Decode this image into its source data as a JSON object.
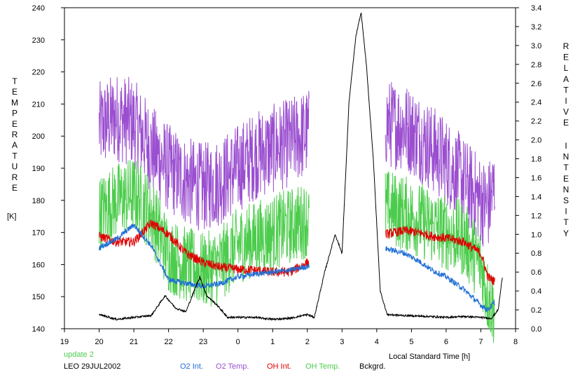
{
  "chart_data": {
    "type": "line",
    "y_left_label_letters": [
      "T",
      "E",
      "M",
      "P",
      "E",
      "R",
      "A",
      "T",
      "U",
      "R",
      "E"
    ],
    "y_left_unit": "[K]",
    "y_right_word1_letters": [
      "R",
      "E",
      "L",
      "A",
      "T",
      "I",
      "V",
      "E"
    ],
    "y_right_word2_letters": [
      "I",
      "N",
      "T",
      "E",
      "N",
      "S",
      "I",
      "T",
      "Y"
    ],
    "xlabel": "Local Standard Time [h]",
    "x_ticks": [
      "19",
      "20",
      "21",
      "22",
      "23",
      "0",
      "1",
      "2",
      "3",
      "4",
      "5",
      "6",
      "7",
      "8"
    ],
    "x_range": [
      19,
      32
    ],
    "y_left_ticks": [
      "140",
      "150",
      "160",
      "170",
      "180",
      "190",
      "200",
      "210",
      "220",
      "230",
      "240"
    ],
    "y_left_range": [
      140,
      240
    ],
    "y_right_ticks": [
      "0.0",
      "0.2",
      "0.4",
      "0.6",
      "0.8",
      "1.0",
      "1.2",
      "1.4",
      "1.6",
      "1.8",
      "2.0",
      "2.2",
      "2.4",
      "2.6",
      "2.8",
      "3.0",
      "3.2",
      "3.4"
    ],
    "y_right_range": [
      0.0,
      3.4
    ],
    "grid": false,
    "annotations": {
      "update": "update 2",
      "station_date": "LEO 29JUL2002"
    },
    "legend": [
      {
        "name": "O2 Int.",
        "color": "#1f6fd6"
      },
      {
        "name": "O2 Temp.",
        "color": "#9b4fd0"
      },
      {
        "name": "OH Int.",
        "color": "#e00000"
      },
      {
        "name": "OH Temp.",
        "color": "#4ccc4c"
      },
      {
        "name": "Bckgrd.",
        "color": "#000000"
      }
    ],
    "series": [
      {
        "name": "O2 Temp.",
        "axis": "left",
        "color": "#9b4fd0",
        "noise": 14,
        "segments": [
          {
            "x": [
              20.0,
              20.5,
              21.0,
              21.5,
              22.0,
              22.5,
              23.0,
              23.5,
              24.0,
              24.5,
              25.0,
              25.5,
              26.0,
              26.05
            ],
            "y": [
              203,
              206,
              204,
              196,
              190,
              186,
              184,
              186,
              190,
              194,
              196,
              198,
              201,
              201
            ]
          },
          {
            "x": [
              28.25,
              28.8,
              29.2,
              29.6,
              30.0,
              30.5,
              31.0,
              31.2,
              31.4
            ],
            "y": [
              204,
              203,
              200,
              196,
              192,
              186,
              180,
              178,
              184
            ]
          }
        ]
      },
      {
        "name": "OH Temp.",
        "axis": "left",
        "color": "#4ccc4c",
        "noise": 12,
        "segments": [
          {
            "x": [
              20.0,
              20.5,
              21.0,
              21.5,
              22.0,
              22.5,
              23.0,
              23.5,
              24.0,
              24.5,
              25.0,
              25.5,
              26.0,
              26.05
            ],
            "y": [
              176,
              180,
              182,
              176,
              163,
              160,
              158,
              160,
              166,
              168,
              170,
              172,
              174,
              174
            ]
          },
          {
            "x": [
              28.25,
              28.8,
              29.2,
              29.6,
              30.0,
              30.5,
              31.0,
              31.2,
              31.4
            ],
            "y": [
              178,
              176,
              174,
              172,
              170,
              168,
              160,
              150,
              146
            ]
          }
        ]
      },
      {
        "name": "OH Int.",
        "axis": "right",
        "color": "#e00000",
        "noise": 0.05,
        "segments": [
          {
            "x": [
              20.0,
              20.5,
              21.0,
              21.5,
              22.0,
              22.5,
              23.0,
              23.5,
              24.0,
              24.5,
              25.0,
              25.5,
              26.0,
              26.05
            ],
            "y": [
              0.98,
              0.92,
              0.92,
              1.12,
              1.0,
              0.8,
              0.7,
              0.65,
              0.63,
              0.62,
              0.6,
              0.6,
              0.7,
              0.7
            ]
          },
          {
            "x": [
              28.25,
              28.8,
              29.2,
              29.6,
              30.0,
              30.5,
              31.0,
              31.2,
              31.4
            ],
            "y": [
              1.0,
              1.04,
              1.02,
              0.98,
              0.96,
              0.92,
              0.8,
              0.55,
              0.5
            ]
          }
        ]
      },
      {
        "name": "O2 Int.",
        "axis": "right",
        "color": "#1f6fd6",
        "noise": 0.03,
        "segments": [
          {
            "x": [
              20.0,
              20.5,
              21.0,
              21.5,
              22.0,
              22.5,
              23.0,
              23.5,
              24.0,
              24.5,
              25.0,
              25.5,
              26.0,
              26.05
            ],
            "y": [
              0.86,
              0.95,
              1.1,
              0.88,
              0.52,
              0.48,
              0.45,
              0.48,
              0.55,
              0.58,
              0.6,
              0.62,
              0.66,
              0.66
            ]
          },
          {
            "x": [
              28.25,
              28.8,
              29.2,
              29.6,
              30.0,
              30.5,
              31.0,
              31.2,
              31.4
            ],
            "y": [
              0.85,
              0.8,
              0.72,
              0.62,
              0.55,
              0.42,
              0.25,
              0.2,
              0.28
            ]
          }
        ]
      },
      {
        "name": "Bckgrd.",
        "axis": "right",
        "color": "#000000",
        "noise": 0.01,
        "segments": [
          {
            "x": [
              20.0,
              20.5,
              21.0,
              21.5,
              21.9,
              22.2,
              22.5,
              22.9,
              23.1,
              23.4,
              23.7,
              24.0,
              24.5,
              25.0,
              25.5,
              26.0,
              26.2,
              26.5,
              26.8,
              27.0,
              27.2,
              27.4,
              27.55,
              27.7,
              27.9,
              28.1,
              28.3,
              28.8,
              29.5,
              30.0,
              30.5,
              31.0,
              31.3,
              31.5,
              31.62
            ],
            "y": [
              0.15,
              0.1,
              0.12,
              0.14,
              0.35,
              0.22,
              0.18,
              0.55,
              0.35,
              0.25,
              0.12,
              0.12,
              0.12,
              0.1,
              0.11,
              0.15,
              0.12,
              0.6,
              1.0,
              0.8,
              2.4,
              3.1,
              3.35,
              2.8,
              1.8,
              0.4,
              0.15,
              0.14,
              0.13,
              0.12,
              0.13,
              0.12,
              0.11,
              0.2,
              0.55
            ]
          }
        ]
      }
    ]
  }
}
